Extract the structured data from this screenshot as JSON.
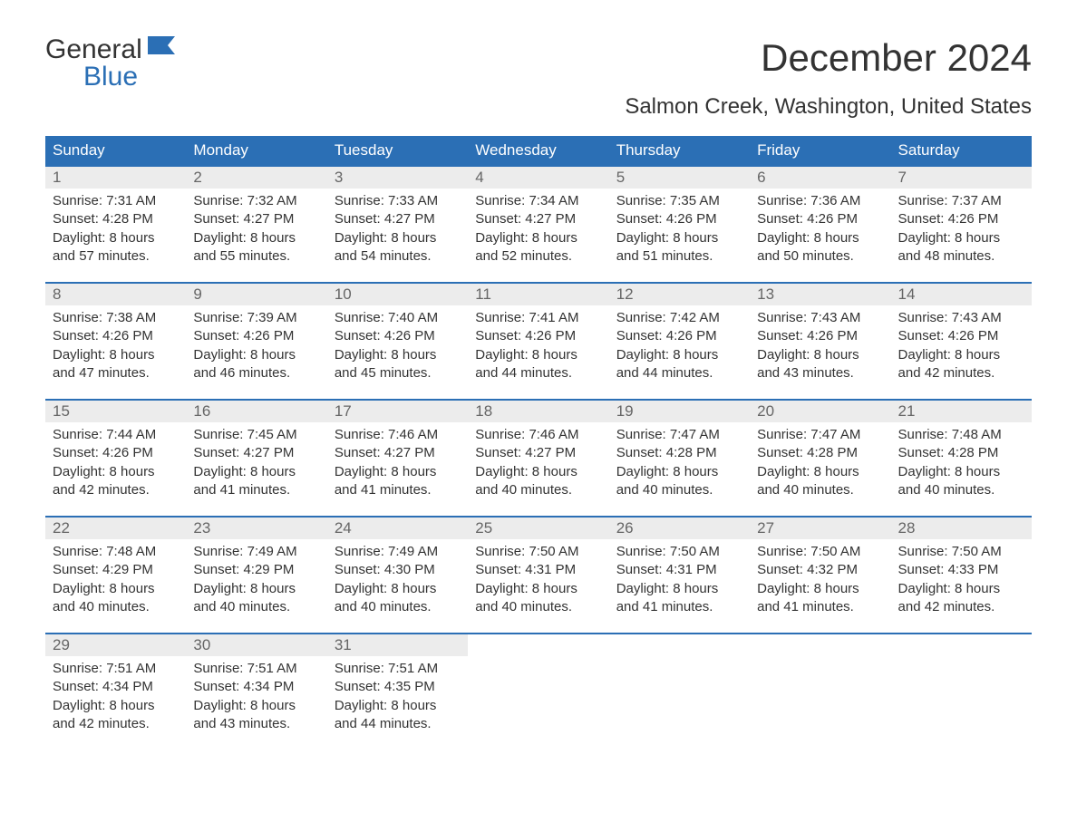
{
  "logo": {
    "word1": "General",
    "word2": "Blue",
    "flag_color": "#2b6fb5"
  },
  "title": "December 2024",
  "subtitle": "Salmon Creek, Washington, United States",
  "colors": {
    "header_bg": "#2b6fb5",
    "header_text": "#ffffff",
    "daynum_bg": "#ececec",
    "daynum_text": "#666666",
    "body_text": "#333333",
    "rule": "#2b6fb5",
    "page_bg": "#ffffff"
  },
  "typography": {
    "title_fontsize": 42,
    "subtitle_fontsize": 24,
    "header_fontsize": 17,
    "daynum_fontsize": 17,
    "body_fontsize": 15,
    "font_family": "Arial"
  },
  "calendar": {
    "type": "table",
    "columns": [
      "Sunday",
      "Monday",
      "Tuesday",
      "Wednesday",
      "Thursday",
      "Friday",
      "Saturday"
    ],
    "weeks": [
      [
        {
          "day": "1",
          "sunrise": "Sunrise: 7:31 AM",
          "sunset": "Sunset: 4:28 PM",
          "dl1": "Daylight: 8 hours",
          "dl2": "and 57 minutes."
        },
        {
          "day": "2",
          "sunrise": "Sunrise: 7:32 AM",
          "sunset": "Sunset: 4:27 PM",
          "dl1": "Daylight: 8 hours",
          "dl2": "and 55 minutes."
        },
        {
          "day": "3",
          "sunrise": "Sunrise: 7:33 AM",
          "sunset": "Sunset: 4:27 PM",
          "dl1": "Daylight: 8 hours",
          "dl2": "and 54 minutes."
        },
        {
          "day": "4",
          "sunrise": "Sunrise: 7:34 AM",
          "sunset": "Sunset: 4:27 PM",
          "dl1": "Daylight: 8 hours",
          "dl2": "and 52 minutes."
        },
        {
          "day": "5",
          "sunrise": "Sunrise: 7:35 AM",
          "sunset": "Sunset: 4:26 PM",
          "dl1": "Daylight: 8 hours",
          "dl2": "and 51 minutes."
        },
        {
          "day": "6",
          "sunrise": "Sunrise: 7:36 AM",
          "sunset": "Sunset: 4:26 PM",
          "dl1": "Daylight: 8 hours",
          "dl2": "and 50 minutes."
        },
        {
          "day": "7",
          "sunrise": "Sunrise: 7:37 AM",
          "sunset": "Sunset: 4:26 PM",
          "dl1": "Daylight: 8 hours",
          "dl2": "and 48 minutes."
        }
      ],
      [
        {
          "day": "8",
          "sunrise": "Sunrise: 7:38 AM",
          "sunset": "Sunset: 4:26 PM",
          "dl1": "Daylight: 8 hours",
          "dl2": "and 47 minutes."
        },
        {
          "day": "9",
          "sunrise": "Sunrise: 7:39 AM",
          "sunset": "Sunset: 4:26 PM",
          "dl1": "Daylight: 8 hours",
          "dl2": "and 46 minutes."
        },
        {
          "day": "10",
          "sunrise": "Sunrise: 7:40 AM",
          "sunset": "Sunset: 4:26 PM",
          "dl1": "Daylight: 8 hours",
          "dl2": "and 45 minutes."
        },
        {
          "day": "11",
          "sunrise": "Sunrise: 7:41 AM",
          "sunset": "Sunset: 4:26 PM",
          "dl1": "Daylight: 8 hours",
          "dl2": "and 44 minutes."
        },
        {
          "day": "12",
          "sunrise": "Sunrise: 7:42 AM",
          "sunset": "Sunset: 4:26 PM",
          "dl1": "Daylight: 8 hours",
          "dl2": "and 44 minutes."
        },
        {
          "day": "13",
          "sunrise": "Sunrise: 7:43 AM",
          "sunset": "Sunset: 4:26 PM",
          "dl1": "Daylight: 8 hours",
          "dl2": "and 43 minutes."
        },
        {
          "day": "14",
          "sunrise": "Sunrise: 7:43 AM",
          "sunset": "Sunset: 4:26 PM",
          "dl1": "Daylight: 8 hours",
          "dl2": "and 42 minutes."
        }
      ],
      [
        {
          "day": "15",
          "sunrise": "Sunrise: 7:44 AM",
          "sunset": "Sunset: 4:26 PM",
          "dl1": "Daylight: 8 hours",
          "dl2": "and 42 minutes."
        },
        {
          "day": "16",
          "sunrise": "Sunrise: 7:45 AM",
          "sunset": "Sunset: 4:27 PM",
          "dl1": "Daylight: 8 hours",
          "dl2": "and 41 minutes."
        },
        {
          "day": "17",
          "sunrise": "Sunrise: 7:46 AM",
          "sunset": "Sunset: 4:27 PM",
          "dl1": "Daylight: 8 hours",
          "dl2": "and 41 minutes."
        },
        {
          "day": "18",
          "sunrise": "Sunrise: 7:46 AM",
          "sunset": "Sunset: 4:27 PM",
          "dl1": "Daylight: 8 hours",
          "dl2": "and 40 minutes."
        },
        {
          "day": "19",
          "sunrise": "Sunrise: 7:47 AM",
          "sunset": "Sunset: 4:28 PM",
          "dl1": "Daylight: 8 hours",
          "dl2": "and 40 minutes."
        },
        {
          "day": "20",
          "sunrise": "Sunrise: 7:47 AM",
          "sunset": "Sunset: 4:28 PM",
          "dl1": "Daylight: 8 hours",
          "dl2": "and 40 minutes."
        },
        {
          "day": "21",
          "sunrise": "Sunrise: 7:48 AM",
          "sunset": "Sunset: 4:28 PM",
          "dl1": "Daylight: 8 hours",
          "dl2": "and 40 minutes."
        }
      ],
      [
        {
          "day": "22",
          "sunrise": "Sunrise: 7:48 AM",
          "sunset": "Sunset: 4:29 PM",
          "dl1": "Daylight: 8 hours",
          "dl2": "and 40 minutes."
        },
        {
          "day": "23",
          "sunrise": "Sunrise: 7:49 AM",
          "sunset": "Sunset: 4:29 PM",
          "dl1": "Daylight: 8 hours",
          "dl2": "and 40 minutes."
        },
        {
          "day": "24",
          "sunrise": "Sunrise: 7:49 AM",
          "sunset": "Sunset: 4:30 PM",
          "dl1": "Daylight: 8 hours",
          "dl2": "and 40 minutes."
        },
        {
          "day": "25",
          "sunrise": "Sunrise: 7:50 AM",
          "sunset": "Sunset: 4:31 PM",
          "dl1": "Daylight: 8 hours",
          "dl2": "and 40 minutes."
        },
        {
          "day": "26",
          "sunrise": "Sunrise: 7:50 AM",
          "sunset": "Sunset: 4:31 PM",
          "dl1": "Daylight: 8 hours",
          "dl2": "and 41 minutes."
        },
        {
          "day": "27",
          "sunrise": "Sunrise: 7:50 AM",
          "sunset": "Sunset: 4:32 PM",
          "dl1": "Daylight: 8 hours",
          "dl2": "and 41 minutes."
        },
        {
          "day": "28",
          "sunrise": "Sunrise: 7:50 AM",
          "sunset": "Sunset: 4:33 PM",
          "dl1": "Daylight: 8 hours",
          "dl2": "and 42 minutes."
        }
      ],
      [
        {
          "day": "29",
          "sunrise": "Sunrise: 7:51 AM",
          "sunset": "Sunset: 4:34 PM",
          "dl1": "Daylight: 8 hours",
          "dl2": "and 42 minutes."
        },
        {
          "day": "30",
          "sunrise": "Sunrise: 7:51 AM",
          "sunset": "Sunset: 4:34 PM",
          "dl1": "Daylight: 8 hours",
          "dl2": "and 43 minutes."
        },
        {
          "day": "31",
          "sunrise": "Sunrise: 7:51 AM",
          "sunset": "Sunset: 4:35 PM",
          "dl1": "Daylight: 8 hours",
          "dl2": "and 44 minutes."
        },
        null,
        null,
        null,
        null
      ]
    ]
  }
}
